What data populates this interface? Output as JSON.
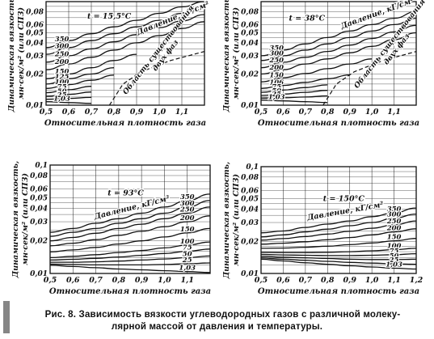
{
  "caption": {
    "label": "Рис. 8.",
    "text_line1": "Зависимость вязкости углеводородных газов с различной молеку-",
    "text_line2": "лярной массой от давления и температуры."
  },
  "colors": {
    "ink": "#111111",
    "paper": "#ffffff",
    "grid": "#222222"
  },
  "chart_data": [
    {
      "type": "line",
      "panel": "top-left",
      "ylabel": "Динамическая вязкость, мн·сек/м² (или СПЗ)",
      "xlabel": "Относительная плотность газа",
      "temperature_label": "t = 15,5°C",
      "pressure_label": "Давление, кГ/см²",
      "region_label": "Область существования двух фаз",
      "xlim": [
        0.5,
        1.2
      ],
      "ylim": [
        0.01,
        0.1
      ],
      "yscale": "log",
      "x_ticks": [
        "0,5",
        "0,6",
        "0,7",
        "0,8",
        "0,9",
        "1,0",
        "1,1"
      ],
      "y_ticks": [
        "0,01",
        "0,02",
        "0,03",
        "0,04",
        "0,05",
        "0,06",
        "0,08"
      ],
      "curve_labels": [
        "350",
        "300",
        "250",
        "200",
        "150",
        "125",
        "100",
        "75",
        "50",
        "25",
        "1,03"
      ],
      "series": [
        {
          "name": "350",
          "x": [
            0.5,
            0.6,
            0.7,
            0.8,
            0.9,
            1.0,
            1.1,
            1.2
          ],
          "y": [
            0.036,
            0.042,
            0.049,
            0.057,
            0.066,
            0.077,
            0.089,
            0.1
          ]
        },
        {
          "name": "300",
          "x": [
            0.5,
            0.6,
            0.7,
            0.8,
            0.9,
            1.0,
            1.1,
            1.2
          ],
          "y": [
            0.031,
            0.036,
            0.042,
            0.049,
            0.057,
            0.066,
            0.077,
            0.09
          ]
        },
        {
          "name": "250",
          "x": [
            0.5,
            0.6,
            0.7,
            0.8,
            0.9,
            1.0,
            1.1,
            1.2
          ],
          "y": [
            0.026,
            0.03,
            0.035,
            0.041,
            0.048,
            0.056,
            0.065,
            0.075
          ]
        },
        {
          "name": "200",
          "x": [
            0.5,
            0.6,
            0.7,
            0.8,
            0.9,
            1.0,
            1.1,
            1.2
          ],
          "y": [
            0.022,
            0.025,
            0.029,
            0.034,
            0.04,
            0.047,
            0.055,
            0.064
          ]
        },
        {
          "name": "150",
          "x": [
            0.5,
            0.6,
            0.7,
            0.8,
            0.9
          ],
          "y": [
            0.018,
            0.02,
            0.023,
            0.027,
            0.031
          ]
        },
        {
          "name": "125",
          "x": [
            0.5,
            0.6,
            0.7,
            0.8
          ],
          "y": [
            0.016,
            0.018,
            0.02,
            0.023
          ]
        },
        {
          "name": "100",
          "x": [
            0.5,
            0.6,
            0.7,
            0.8
          ],
          "y": [
            0.0145,
            0.0158,
            0.0174,
            0.0195
          ]
        },
        {
          "name": "75",
          "x": [
            0.5,
            0.6,
            0.7
          ],
          "y": [
            0.0132,
            0.0141,
            0.0152
          ]
        },
        {
          "name": "50",
          "x": [
            0.5,
            0.6,
            0.7
          ],
          "y": [
            0.0122,
            0.0127,
            0.0134
          ]
        },
        {
          "name": "25",
          "x": [
            0.5,
            0.6,
            0.7
          ],
          "y": [
            0.0114,
            0.0116,
            0.0119
          ]
        },
        {
          "name": "1,03",
          "x": [
            0.5,
            0.6,
            0.7
          ],
          "y": [
            0.0108,
            0.0106,
            0.0104
          ]
        }
      ]
    },
    {
      "type": "line",
      "panel": "top-right",
      "ylabel": "Динамическая вязкость, мн·сек/м² (или СПЗ)",
      "xlabel": "Относительная плотность газа",
      "temperature_label": "t = 38°C",
      "pressure_label": "Давление, кГ/см²",
      "region_label": "Область существования двух фаз",
      "xlim": [
        0.5,
        1.2
      ],
      "ylim": [
        0.01,
        0.1
      ],
      "yscale": "log",
      "x_ticks": [
        "0,5",
        "0,6",
        "0,7",
        "0,8",
        "0,9",
        "1,0",
        "1,1"
      ],
      "y_ticks": [
        "0,01",
        "0,02",
        "0,03",
        "0,04",
        "0,05",
        "0,06",
        "0,08"
      ],
      "curve_labels": [
        "350",
        "300",
        "250",
        "200",
        "150",
        "106",
        "75",
        "50",
        "25",
        "1,03"
      ],
      "series": [
        {
          "name": "350",
          "x": [
            0.5,
            0.6,
            0.7,
            0.8,
            0.9,
            1.0,
            1.1,
            1.2
          ],
          "y": [
            0.03,
            0.034,
            0.039,
            0.045,
            0.052,
            0.06,
            0.069,
            0.08
          ]
        },
        {
          "name": "300",
          "x": [
            0.5,
            0.6,
            0.7,
            0.8,
            0.9,
            1.0,
            1.1,
            1.2
          ],
          "y": [
            0.027,
            0.03,
            0.034,
            0.039,
            0.045,
            0.052,
            0.06,
            0.069
          ]
        },
        {
          "name": "250",
          "x": [
            0.5,
            0.6,
            0.7,
            0.8,
            0.9,
            1.0,
            1.1,
            1.2
          ],
          "y": [
            0.023,
            0.026,
            0.029,
            0.033,
            0.038,
            0.044,
            0.051,
            0.059
          ]
        },
        {
          "name": "200",
          "x": [
            0.5,
            0.6,
            0.7,
            0.8,
            0.9,
            1.0,
            1.1,
            1.2
          ],
          "y": [
            0.02,
            0.022,
            0.025,
            0.028,
            0.032,
            0.037,
            0.043,
            0.05
          ]
        },
        {
          "name": "150",
          "x": [
            0.5,
            0.6,
            0.7,
            0.8,
            0.9,
            1.0
          ],
          "y": [
            0.0168,
            0.0184,
            0.0202,
            0.0225,
            0.025,
            0.028
          ]
        },
        {
          "name": "106",
          "x": [
            0.5,
            0.6,
            0.7,
            0.8,
            0.9
          ],
          "y": [
            0.0145,
            0.0155,
            0.0166,
            0.018,
            0.0196
          ]
        },
        {
          "name": "75",
          "x": [
            0.5,
            0.6,
            0.7,
            0.8
          ],
          "y": [
            0.0133,
            0.014,
            0.0148,
            0.0157
          ]
        },
        {
          "name": "50",
          "x": [
            0.5,
            0.6,
            0.7,
            0.8
          ],
          "y": [
            0.0124,
            0.0128,
            0.0133,
            0.0139
          ]
        },
        {
          "name": "25",
          "x": [
            0.5,
            0.6,
            0.7,
            0.8
          ],
          "y": [
            0.0117,
            0.0118,
            0.012,
            0.0123
          ]
        },
        {
          "name": "1,03",
          "x": [
            0.5,
            0.6,
            0.7,
            0.8
          ],
          "y": [
            0.0112,
            0.011,
            0.0108,
            0.0106
          ]
        }
      ]
    },
    {
      "type": "line",
      "panel": "bottom-left",
      "ylabel": "Динамическая вязкость, мн·сек/м² (или СПЗ)",
      "xlabel": "Относительная плотность газа",
      "temperature_label": "t = 93°C",
      "pressure_label": "Давление, кГ/см²",
      "xlim": [
        0.5,
        1.2
      ],
      "ylim": [
        0.01,
        0.1
      ],
      "yscale": "log",
      "x_ticks": [
        "0,5",
        "0,6",
        "0,7",
        "0,8",
        "0,9",
        "1,0",
        "1,1"
      ],
      "y_ticks": [
        "0,01",
        "0,02",
        "0,03",
        "0,04",
        "0,05",
        "0,06",
        "0,08",
        "0,1"
      ],
      "curve_labels": [
        "350",
        "300",
        "250",
        "200",
        "150",
        "100",
        "75",
        "50",
        "25",
        "1,03"
      ],
      "series": [
        {
          "name": "350",
          "x": [
            0.5,
            0.6,
            0.7,
            0.8,
            0.9,
            1.0,
            1.1,
            1.2
          ],
          "y": [
            0.024,
            0.026,
            0.029,
            0.032,
            0.036,
            0.041,
            0.047,
            0.054
          ]
        },
        {
          "name": "300",
          "x": [
            0.5,
            0.6,
            0.7,
            0.8,
            0.9,
            1.0,
            1.1,
            1.2
          ],
          "y": [
            0.022,
            0.024,
            0.026,
            0.029,
            0.032,
            0.036,
            0.041,
            0.047
          ]
        },
        {
          "name": "250",
          "x": [
            0.5,
            0.6,
            0.7,
            0.8,
            0.9,
            1.0,
            1.1,
            1.2
          ],
          "y": [
            0.02,
            0.0215,
            0.0235,
            0.026,
            0.0285,
            0.032,
            0.036,
            0.041
          ]
        },
        {
          "name": "200",
          "x": [
            0.5,
            0.6,
            0.7,
            0.8,
            0.9,
            1.0,
            1.1,
            1.2
          ],
          "y": [
            0.018,
            0.019,
            0.0205,
            0.0225,
            0.0245,
            0.027,
            0.03,
            0.034
          ]
        },
        {
          "name": "150",
          "x": [
            0.5,
            0.6,
            0.7,
            0.8,
            0.9,
            1.0,
            1.1,
            1.2
          ],
          "y": [
            0.0158,
            0.0165,
            0.0174,
            0.0187,
            0.02,
            0.0217,
            0.0237,
            0.026
          ]
        },
        {
          "name": "100",
          "x": [
            0.5,
            0.6,
            0.7,
            0.8,
            0.9,
            1.0,
            1.1,
            1.2
          ],
          "y": [
            0.014,
            0.0144,
            0.0149,
            0.0156,
            0.0163,
            0.0172,
            0.0183,
            0.0195
          ]
        },
        {
          "name": "75",
          "x": [
            0.5,
            0.6,
            0.7,
            0.8,
            0.9,
            1.0,
            1.1,
            1.2
          ],
          "y": [
            0.0133,
            0.0135,
            0.0138,
            0.0142,
            0.0147,
            0.0153,
            0.016,
            0.0168
          ]
        },
        {
          "name": "50",
          "x": [
            0.5,
            0.6,
            0.7,
            0.8,
            0.9,
            1.0,
            1.1,
            1.2
          ],
          "y": [
            0.0127,
            0.0127,
            0.0128,
            0.013,
            0.0133,
            0.0136,
            0.014,
            0.0145
          ]
        },
        {
          "name": "25",
          "x": [
            0.5,
            0.6,
            0.7,
            0.8,
            0.9,
            1.0,
            1.1,
            1.2
          ],
          "y": [
            0.0122,
            0.0121,
            0.012,
            0.012,
            0.012,
            0.0121,
            0.0123,
            0.0125
          ]
        },
        {
          "name": "1,03",
          "x": [
            0.5,
            0.6,
            0.7,
            0.8,
            0.9,
            1.0,
            1.1,
            1.2
          ],
          "y": [
            0.0119,
            0.0116,
            0.0113,
            0.011,
            0.0108,
            0.0106,
            0.0104,
            0.0102
          ]
        }
      ]
    },
    {
      "type": "line",
      "panel": "bottom-right",
      "ylabel": "Динамическая вязкость, мн·сек/м² (или СПЗ)",
      "xlabel": "Относительная плотность газа",
      "temperature_label": "t = 150°C",
      "pressure_label": "Давление, кГ/см²",
      "xlim": [
        0.5,
        1.2
      ],
      "ylim": [
        0.01,
        0.1
      ],
      "yscale": "log",
      "x_ticks": [
        "0,5",
        "0,6",
        "0,7",
        "0,8",
        "0,9",
        "1,0",
        "1,1",
        "1,2"
      ],
      "y_ticks": [
        "0,01",
        "0,02",
        "0,03",
        "0,04",
        "0,05",
        "0,06",
        "0,08",
        "0,1"
      ],
      "curve_labels": [
        "350",
        "300",
        "250",
        "200",
        "150",
        "100",
        "75",
        "50",
        "25",
        "1,03"
      ],
      "series": [
        {
          "name": "350",
          "x": [
            0.5,
            0.6,
            0.7,
            0.8,
            0.9,
            1.0,
            1.1,
            1.2
          ],
          "y": [
            0.024,
            0.025,
            0.027,
            0.029,
            0.031,
            0.034,
            0.037,
            0.041
          ]
        },
        {
          "name": "300",
          "x": [
            0.5,
            0.6,
            0.7,
            0.8,
            0.9,
            1.0,
            1.1,
            1.2
          ],
          "y": [
            0.022,
            0.023,
            0.0245,
            0.026,
            0.028,
            0.03,
            0.033,
            0.036
          ]
        },
        {
          "name": "250",
          "x": [
            0.5,
            0.6,
            0.7,
            0.8,
            0.9,
            1.0,
            1.1,
            1.2
          ],
          "y": [
            0.0205,
            0.0212,
            0.0222,
            0.0234,
            0.0248,
            0.0265,
            0.0285,
            0.031
          ]
        },
        {
          "name": "200",
          "x": [
            0.5,
            0.6,
            0.7,
            0.8,
            0.9,
            1.0,
            1.1,
            1.2
          ],
          "y": [
            0.0188,
            0.0192,
            0.0198,
            0.0207,
            0.0217,
            0.023,
            0.0245,
            0.0262
          ]
        },
        {
          "name": "150",
          "x": [
            0.5,
            0.6,
            0.7,
            0.8,
            0.9,
            1.0,
            1.1,
            1.2
          ],
          "y": [
            0.0172,
            0.0173,
            0.0176,
            0.018,
            0.0186,
            0.0193,
            0.0202,
            0.0213
          ]
        },
        {
          "name": "100",
          "x": [
            0.5,
            0.6,
            0.7,
            0.8,
            0.9,
            1.0,
            1.1,
            1.2
          ],
          "y": [
            0.0158,
            0.0157,
            0.0157,
            0.0158,
            0.016,
            0.0163,
            0.0167,
            0.0172
          ]
        },
        {
          "name": "75",
          "x": [
            0.5,
            0.6,
            0.7,
            0.8,
            0.9,
            1.0,
            1.1,
            1.2
          ],
          "y": [
            0.0151,
            0.0149,
            0.0148,
            0.0147,
            0.0147,
            0.0148,
            0.015,
            0.0153
          ]
        },
        {
          "name": "50",
          "x": [
            0.5,
            0.6,
            0.7,
            0.8,
            0.9,
            1.0,
            1.1,
            1.2
          ],
          "y": [
            0.0145,
            0.0142,
            0.014,
            0.0138,
            0.0136,
            0.0135,
            0.0135,
            0.0136
          ]
        },
        {
          "name": "25",
          "x": [
            0.5,
            0.6,
            0.7,
            0.8,
            0.9,
            1.0,
            1.1,
            1.2
          ],
          "y": [
            0.014,
            0.0136,
            0.0133,
            0.013,
            0.0127,
            0.0125,
            0.0123,
            0.0122
          ]
        },
        {
          "name": "1,03",
          "x": [
            0.5,
            0.6,
            0.7,
            0.8,
            0.9,
            1.0,
            1.1,
            1.2
          ],
          "y": [
            0.0136,
            0.0131,
            0.0126,
            0.0122,
            0.0118,
            0.0115,
            0.0112,
            0.011
          ]
        }
      ]
    }
  ]
}
